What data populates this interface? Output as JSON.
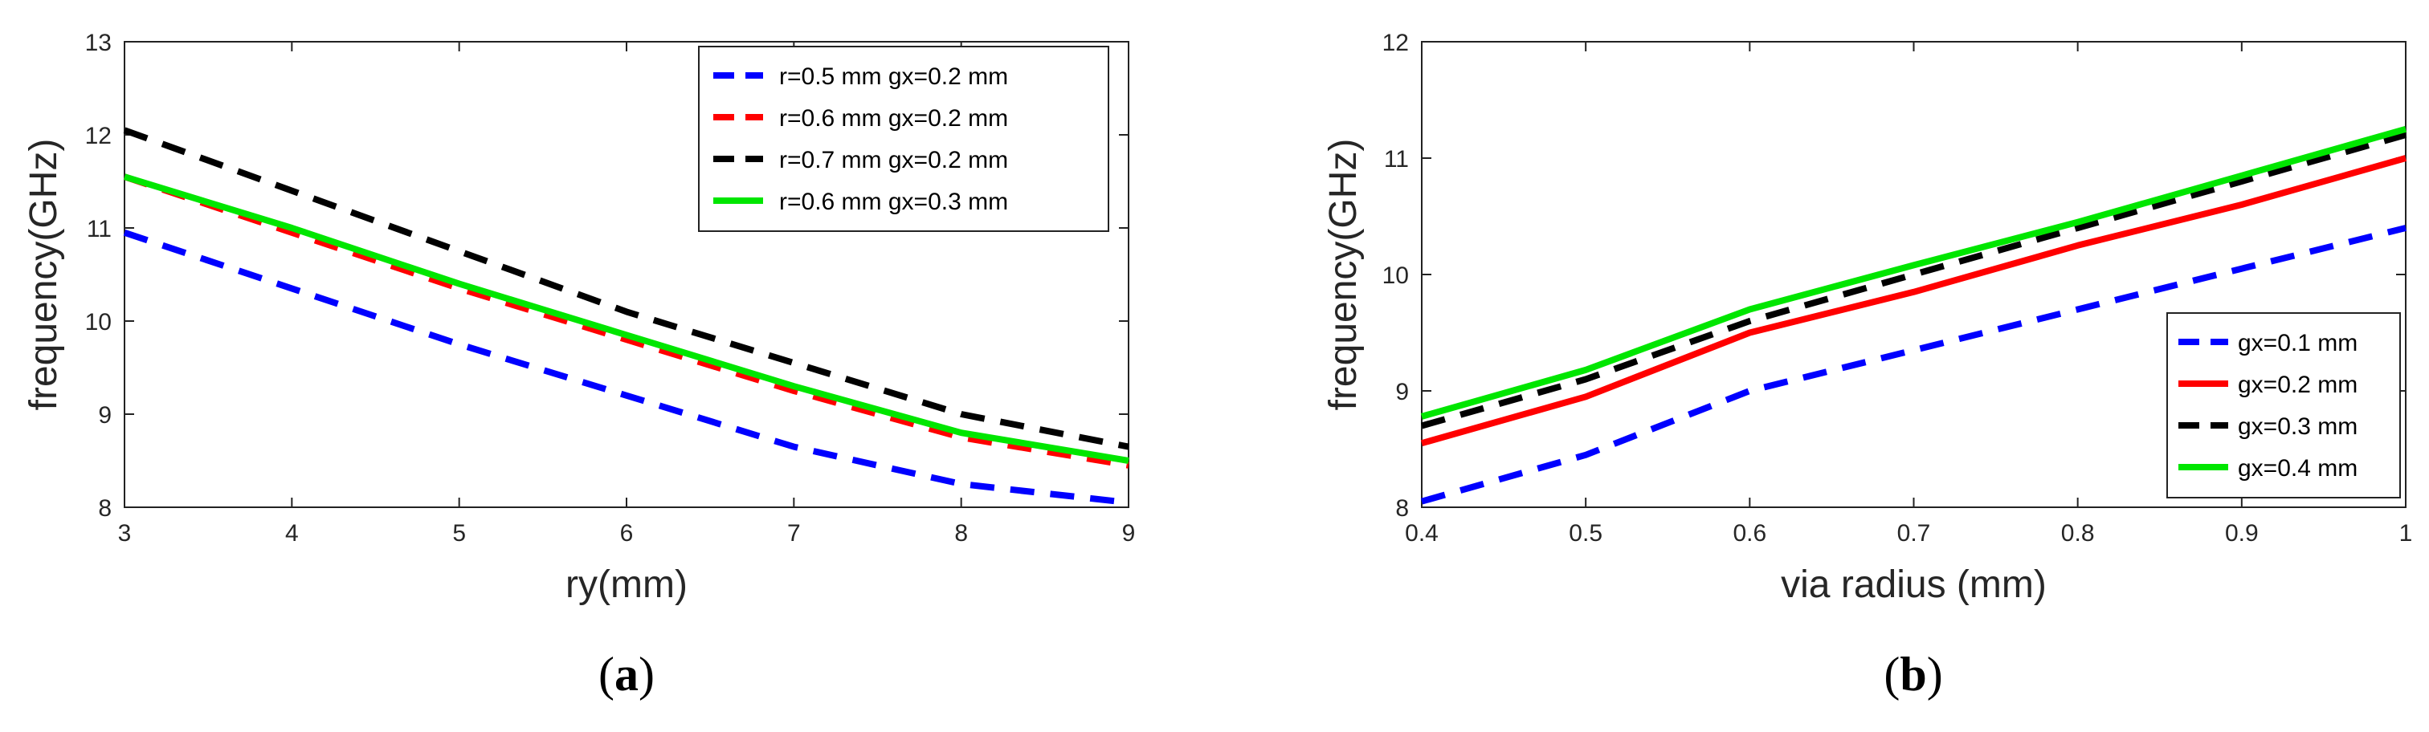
{
  "chart_data": [
    {
      "type": "line",
      "panel": "a",
      "caption": {
        "open": "(",
        "letter": "a",
        "close": ")"
      },
      "xlabel": "ry(mm)",
      "ylabel": "frequency(GHz)",
      "xlim": [
        3,
        9
      ],
      "ylim": [
        8,
        13
      ],
      "xticks": [
        "3",
        "4",
        "5",
        "6",
        "7",
        "8",
        "9"
      ],
      "yticks": [
        "8",
        "9",
        "10",
        "11",
        "12",
        "13"
      ],
      "legend_position": "top-right",
      "x": [
        3,
        4,
        5,
        6,
        7,
        8,
        9
      ],
      "series": [
        {
          "name": "r=0.5 mm gx=0.2 mm",
          "color": "#0000ff",
          "style": "dashed",
          "values": [
            10.95,
            10.35,
            9.75,
            9.2,
            8.65,
            8.25,
            8.05
          ]
        },
        {
          "name": "r=0.6 mm gx=0.2 mm",
          "color": "#ff0000",
          "style": "dashed",
          "values": [
            11.55,
            10.95,
            10.35,
            9.8,
            9.25,
            8.75,
            8.45
          ]
        },
        {
          "name": "r=0.7 mm gx=0.2 mm",
          "color": "#000000",
          "style": "dashed",
          "values": [
            12.05,
            11.4,
            10.75,
            10.1,
            9.55,
            9.0,
            8.65
          ]
        },
        {
          "name": "r=0.6 mm gx=0.3 mm",
          "color": "#00e600",
          "style": "solid",
          "values": [
            11.55,
            11.0,
            10.4,
            9.85,
            9.3,
            8.8,
            8.5
          ]
        }
      ]
    },
    {
      "type": "line",
      "panel": "b",
      "caption": {
        "open": "(",
        "letter": "b",
        "close": ")"
      },
      "xlabel": "via radius (mm)",
      "ylabel": "frequency(GHz)",
      "xlim": [
        0.4,
        1
      ],
      "ylim": [
        8,
        12
      ],
      "xticks": [
        "0.4",
        "0.5",
        "0.6",
        "0.7",
        "0.8",
        "0.9",
        "1"
      ],
      "yticks": [
        "8",
        "9",
        "10",
        "11",
        "12"
      ],
      "legend_position": "bottom-right",
      "x": [
        0.4,
        0.5,
        0.6,
        0.7,
        0.8,
        0.9,
        1.0
      ],
      "series": [
        {
          "name": "gx=0.1 mm",
          "color": "#0000ff",
          "style": "dashed",
          "values": [
            8.05,
            8.45,
            9.0,
            9.35,
            9.7,
            10.05,
            10.4
          ]
        },
        {
          "name": "gx=0.2 mm",
          "color": "#ff0000",
          "style": "solid",
          "values": [
            8.55,
            8.95,
            9.5,
            9.85,
            10.25,
            10.6,
            11.0
          ]
        },
        {
          "name": "gx=0.3 mm",
          "color": "#000000",
          "style": "dashed",
          "values": [
            8.7,
            9.1,
            9.6,
            10.0,
            10.4,
            10.8,
            11.2
          ]
        },
        {
          "name": "gx=0.4 mm",
          "color": "#00e600",
          "style": "solid",
          "values": [
            8.78,
            9.18,
            9.7,
            10.08,
            10.45,
            10.85,
            11.25
          ]
        }
      ]
    }
  ]
}
